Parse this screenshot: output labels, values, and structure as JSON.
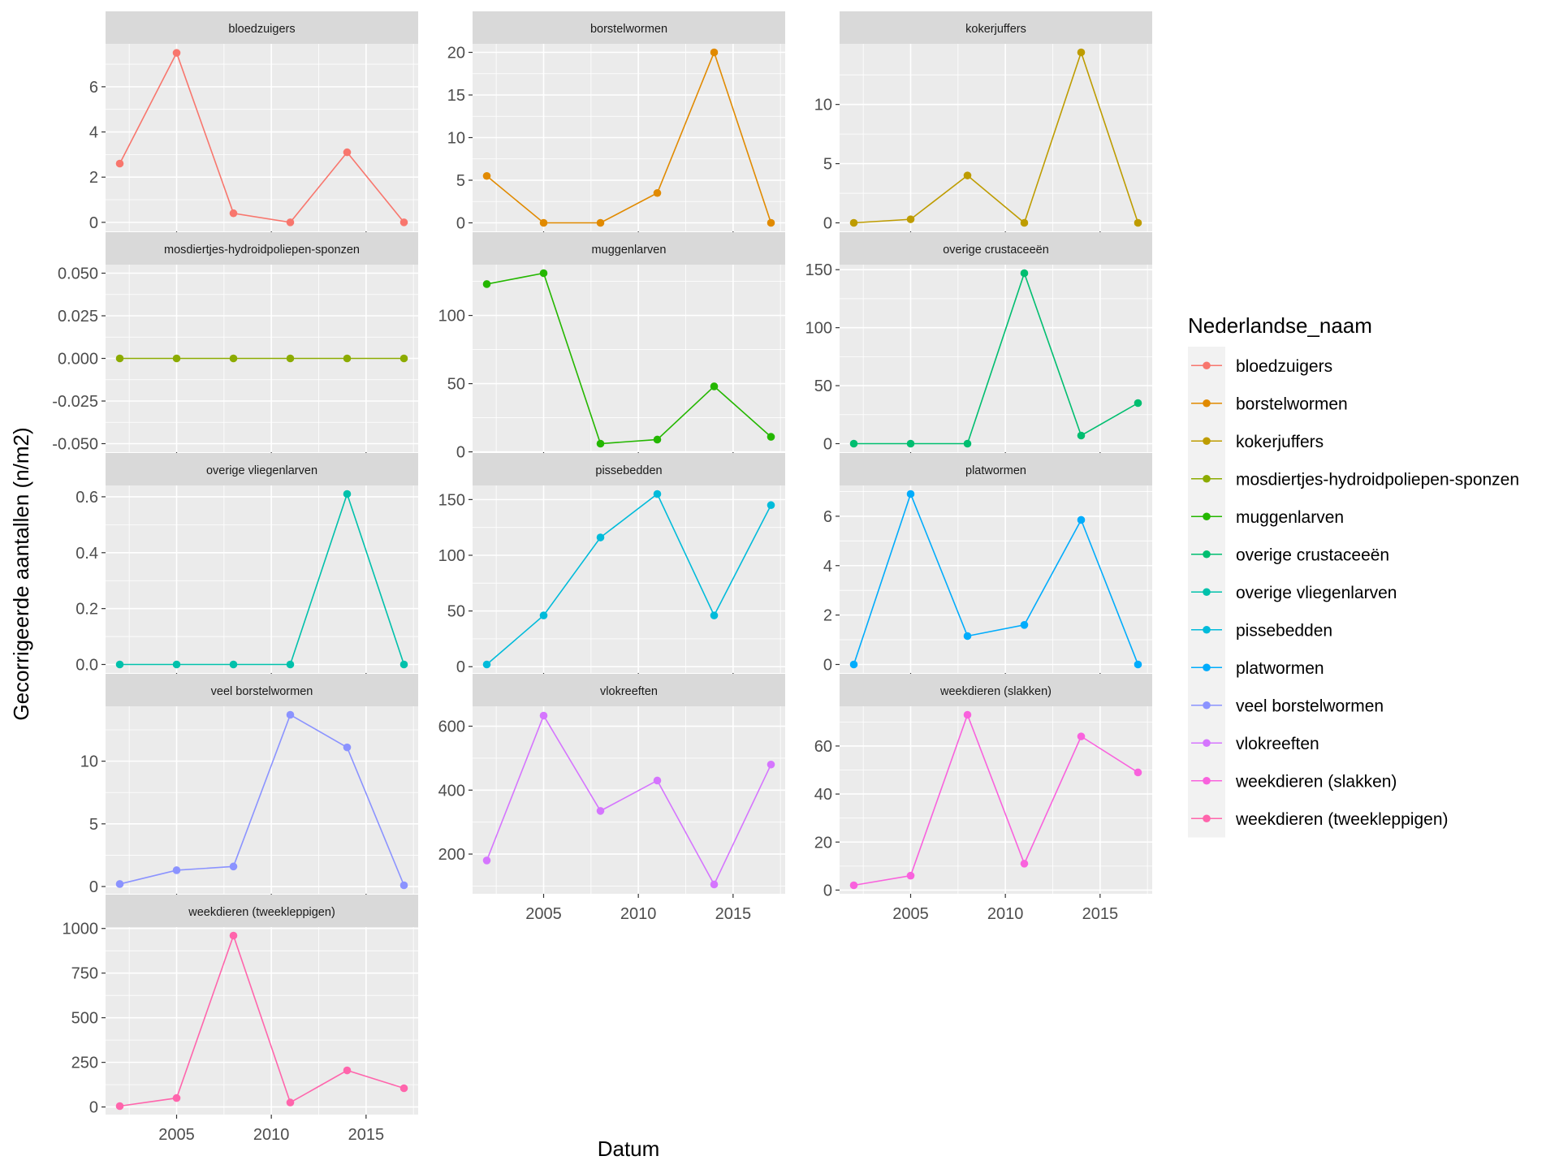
{
  "chart_data": {
    "type": "line",
    "facet_wrap": {
      "ncol": 3,
      "scales": "free_y",
      "shared_x": true
    },
    "xlabel": "Datum",
    "ylabel": "Gecorrigeerde aantallen (n/m2)",
    "x": [
      2002,
      2005,
      2008,
      2011,
      2014,
      2017
    ],
    "xlim": [
      2001.25,
      2017.75
    ],
    "x_ticks": [
      2005,
      2010,
      2015
    ],
    "legend": {
      "title": "Nederlandse_naam",
      "position": "right"
    },
    "grid": true,
    "series": [
      {
        "name": "bloedzuigers",
        "color": "#F8766D",
        "values": [
          2.6,
          7.5,
          0.4,
          0.0,
          3.1,
          0.0
        ],
        "ylim": [
          -0.4,
          7.9
        ],
        "yticks": [
          0,
          2,
          4,
          6
        ]
      },
      {
        "name": "borstelwormen",
        "color": "#E18A00",
        "values": [
          5.5,
          0.0,
          0.0,
          3.5,
          20.0,
          0.0
        ],
        "ylim": [
          -1.0,
          21.0
        ],
        "yticks": [
          0,
          5,
          10,
          15,
          20
        ]
      },
      {
        "name": "kokerjuffers",
        "color": "#BE9C00",
        "values": [
          0.0,
          0.3,
          4.0,
          0.0,
          14.4,
          0.0
        ],
        "ylim": [
          -0.72,
          15.12
        ],
        "yticks": [
          0,
          5,
          10
        ]
      },
      {
        "name": "mosdiertjes-hydroidpoliepen-sponzen",
        "color": "#8CAB00",
        "values": [
          0,
          0,
          0,
          0,
          0,
          0
        ],
        "ylim": [
          -0.055,
          0.055
        ],
        "yticks": [
          -0.05,
          -0.025,
          0.0,
          0.025,
          0.05
        ],
        "ytick_labels": [
          "-0.050",
          "-0.025",
          "0.000",
          "0.025",
          "0.050"
        ]
      },
      {
        "name": "muggenlarven",
        "color": "#24B700",
        "values": [
          123,
          131,
          6,
          9,
          48,
          11
        ],
        "ylim": [
          -0.25,
          137.25
        ],
        "yticks": [
          0,
          50,
          100
        ]
      },
      {
        "name": "overige crustaceeën",
        "color": "#00BE70",
        "values": [
          0,
          0,
          0,
          147,
          7,
          35
        ],
        "ylim": [
          -7.35,
          154.35
        ],
        "yticks": [
          0,
          50,
          100,
          150
        ]
      },
      {
        "name": "overige vliegenlarven",
        "color": "#00C1AB",
        "values": [
          0.0,
          0.0,
          0.0,
          0.0,
          0.61,
          0.0
        ],
        "ylim": [
          -0.0305,
          0.6405
        ],
        "yticks": [
          0.0,
          0.2,
          0.4,
          0.6
        ],
        "ytick_labels": [
          "0.0",
          "0.2",
          "0.4",
          "0.6"
        ]
      },
      {
        "name": "pissebedden",
        "color": "#00BBDA",
        "values": [
          2,
          46,
          116,
          155,
          46,
          145
        ],
        "ylim": [
          -5.65,
          162.65
        ],
        "yticks": [
          0,
          50,
          100,
          150
        ]
      },
      {
        "name": "platwormen",
        "color": "#00ACFC",
        "values": [
          0.0,
          6.9,
          1.15,
          1.6,
          5.85,
          0.0
        ],
        "ylim": [
          -0.345,
          7.245
        ],
        "yticks": [
          0,
          2,
          4,
          6
        ]
      },
      {
        "name": "veel borstelwormen",
        "color": "#8B93FF",
        "values": [
          0.2,
          1.3,
          1.6,
          13.7,
          11.1,
          0.1
        ],
        "ylim": [
          -0.58,
          14.38
        ],
        "yticks": [
          0,
          5,
          10
        ]
      },
      {
        "name": "vlokreeften",
        "color": "#D575FE",
        "values": [
          180,
          633,
          335,
          430,
          105,
          480
        ],
        "ylim": [
          75.7,
          662.3
        ],
        "yticks": [
          200,
          400,
          600
        ],
        "y_zero_tick": true
      },
      {
        "name": "weekdieren (slakken)",
        "color": "#F962DD",
        "values": [
          2,
          6,
          73,
          11,
          64,
          49
        ],
        "ylim": [
          -1.55,
          76.55
        ],
        "yticks": [
          0,
          20,
          40,
          60
        ]
      },
      {
        "name": "weekdieren (tweekleppigen)",
        "color": "#FF65AC",
        "values": [
          5,
          50,
          960,
          25,
          205,
          105
        ],
        "ylim": [
          -42.75,
          1007.75
        ],
        "yticks": [
          0,
          250,
          500,
          750,
          1000
        ]
      }
    ]
  }
}
